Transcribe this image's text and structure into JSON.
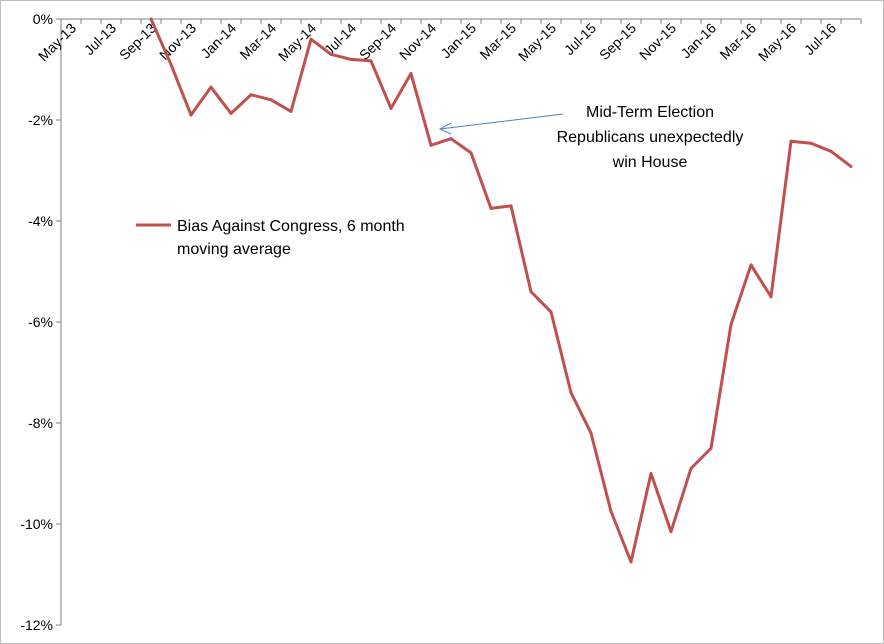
{
  "chart_data": {
    "type": "line",
    "x": [
      "May-13",
      "Jun-13",
      "Jul-13",
      "Aug-13",
      "Sep-13",
      "Oct-13",
      "Nov-13",
      "Dec-13",
      "Jan-14",
      "Feb-14",
      "Mar-14",
      "Apr-14",
      "May-14",
      "Jun-14",
      "Jul-14",
      "Aug-14",
      "Sep-14",
      "Oct-14",
      "Nov-14",
      "Dec-14",
      "Jan-15",
      "Feb-15",
      "Mar-15",
      "Apr-15",
      "May-15",
      "Jun-15",
      "Jul-15",
      "Aug-15",
      "Sep-15",
      "Oct-15",
      "Nov-15",
      "Dec-15",
      "Jan-16",
      "Feb-16",
      "Mar-16",
      "Apr-16",
      "May-16",
      "Jun-16",
      "Jul-16",
      "Aug-16"
    ],
    "x_tick_labels": [
      "May-13",
      "Jul-13",
      "Sep-13",
      "Nov-13",
      "Jan-14",
      "Mar-14",
      "May-14",
      "Jul-14",
      "Sep-14",
      "Nov-14",
      "Jan-15",
      "Mar-15",
      "May-15",
      "Jul-15",
      "Sep-15",
      "Nov-15",
      "Jan-16",
      "Mar-16",
      "May-16",
      "Jul-16"
    ],
    "series": [
      {
        "name": "Bias Against Congress, 6 month moving average",
        "color": "#c0504d",
        "values": [
          null,
          null,
          null,
          null,
          0.0,
          -0.9,
          -1.9,
          -1.35,
          -1.87,
          -1.5,
          -1.6,
          -1.83,
          -0.4,
          -0.7,
          -0.8,
          -0.83,
          -1.77,
          -1.08,
          -2.5,
          -2.37,
          -2.65,
          -3.75,
          -3.7,
          -5.4,
          -5.8,
          -7.4,
          -8.2,
          -9.75,
          -10.75,
          -9.0,
          -10.15,
          -8.9,
          -8.5,
          -6.05,
          -4.87,
          -5.5,
          -2.42,
          -2.46,
          -2.62,
          -2.92
        ]
      }
    ],
    "yticks": [
      "0%",
      "-2%",
      "-4%",
      "-6%",
      "-8%",
      "-10%",
      "-12%"
    ],
    "ylim": [
      -12,
      0
    ],
    "grid": false,
    "legend_position": "left, inside plot",
    "annotation": {
      "lines": [
        "Mid-Term Election",
        "Republicans unexpectedly",
        "win House"
      ],
      "points_to": "Nov-14",
      "arrow_color": "#4f81bd"
    },
    "axis_color": "#808080"
  }
}
